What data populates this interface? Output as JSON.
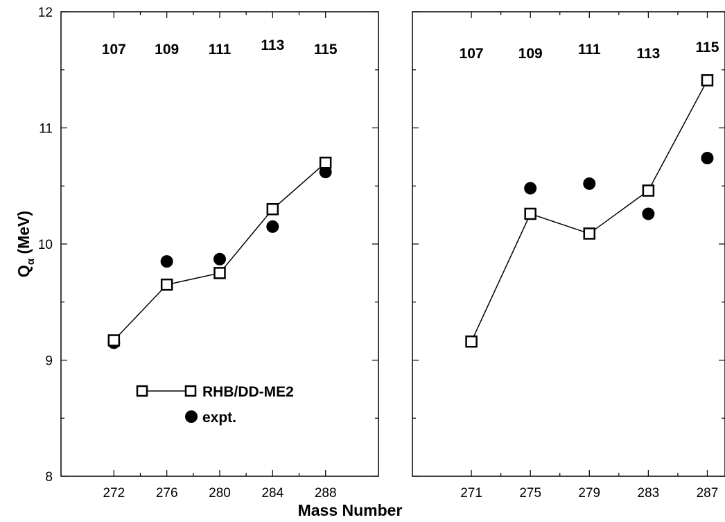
{
  "chart_data": [
    {
      "type": "line",
      "panel": "left",
      "x": [
        272,
        276,
        280,
        284,
        288
      ],
      "xlim": [
        268,
        292
      ],
      "ylim": [
        8,
        12
      ],
      "yticks": [
        8,
        9,
        10,
        11,
        12
      ],
      "z_labels": [
        "107",
        "109",
        "111",
        "113",
        "115"
      ],
      "series": [
        {
          "name": "RHB/DD-ME2",
          "marker": "open-square",
          "connected": true,
          "values": [
            9.17,
            9.65,
            9.75,
            10.3,
            10.7
          ]
        },
        {
          "name": "expt.",
          "marker": "filled-circle",
          "connected": false,
          "values": [
            9.15,
            9.85,
            9.87,
            10.15,
            10.62
          ]
        }
      ]
    },
    {
      "type": "line",
      "panel": "right",
      "x": [
        271,
        275,
        279,
        283,
        287
      ],
      "xlim": [
        267,
        288.2
      ],
      "ylim": [
        8,
        12
      ],
      "yticks": [
        8,
        9,
        10,
        11,
        12
      ],
      "z_labels": [
        "107",
        "109",
        "111",
        "113",
        "115"
      ],
      "series": [
        {
          "name": "RHB/DD-ME2",
          "marker": "open-square",
          "connected": true,
          "values": [
            9.16,
            10.26,
            10.09,
            10.46,
            11.41
          ]
        },
        {
          "name": "expt.",
          "marker": "filled-circle",
          "connected": false,
          "values": [
            null,
            10.48,
            10.52,
            10.26,
            10.74
          ]
        }
      ]
    }
  ],
  "xlabel": "Mass Number",
  "ylabel": {
    "main": "Q",
    "sub": "α",
    "unit": " (MeV)"
  },
  "legend": {
    "placement": "lower-left of left panel",
    "entries": [
      "RHB/DD-ME2",
      "expt."
    ]
  }
}
